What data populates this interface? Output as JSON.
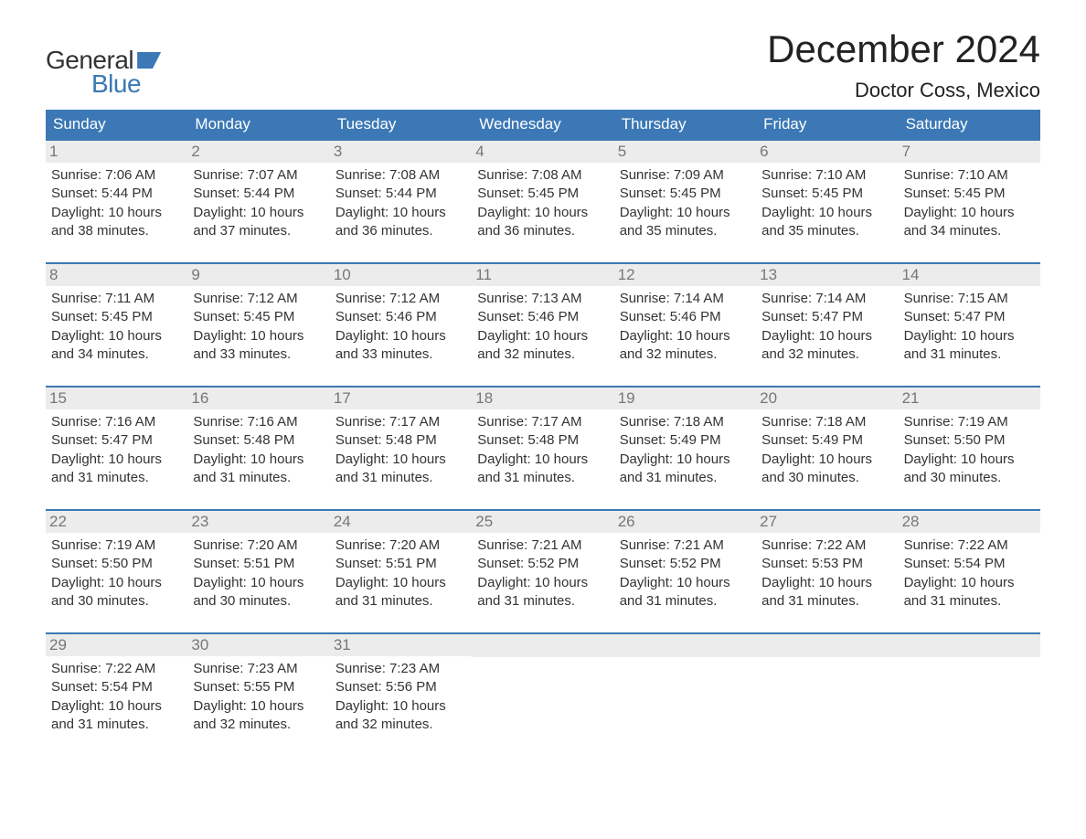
{
  "brand": {
    "line1": "General",
    "line2": "Blue",
    "brand_color": "#3b78b5",
    "text_color": "#333333"
  },
  "header": {
    "month_title": "December 2024",
    "location": "Doctor Coss, Mexico"
  },
  "calendar": {
    "day_names": [
      "Sunday",
      "Monday",
      "Tuesday",
      "Wednesday",
      "Thursday",
      "Friday",
      "Saturday"
    ],
    "header_bg": "#3b78b5",
    "header_fg": "#ffffff",
    "daynum_bg": "#ececec",
    "daynum_fg": "#777777",
    "row_border_color": "#3b78b5",
    "text_color": "#333333",
    "font_size_header": 17,
    "font_size_body": 15,
    "weeks": [
      [
        {
          "day": "1",
          "sunrise": "Sunrise: 7:06 AM",
          "sunset": "Sunset: 5:44 PM",
          "daylight1": "Daylight: 10 hours",
          "daylight2": "and 38 minutes."
        },
        {
          "day": "2",
          "sunrise": "Sunrise: 7:07 AM",
          "sunset": "Sunset: 5:44 PM",
          "daylight1": "Daylight: 10 hours",
          "daylight2": "and 37 minutes."
        },
        {
          "day": "3",
          "sunrise": "Sunrise: 7:08 AM",
          "sunset": "Sunset: 5:44 PM",
          "daylight1": "Daylight: 10 hours",
          "daylight2": "and 36 minutes."
        },
        {
          "day": "4",
          "sunrise": "Sunrise: 7:08 AM",
          "sunset": "Sunset: 5:45 PM",
          "daylight1": "Daylight: 10 hours",
          "daylight2": "and 36 minutes."
        },
        {
          "day": "5",
          "sunrise": "Sunrise: 7:09 AM",
          "sunset": "Sunset: 5:45 PM",
          "daylight1": "Daylight: 10 hours",
          "daylight2": "and 35 minutes."
        },
        {
          "day": "6",
          "sunrise": "Sunrise: 7:10 AM",
          "sunset": "Sunset: 5:45 PM",
          "daylight1": "Daylight: 10 hours",
          "daylight2": "and 35 minutes."
        },
        {
          "day": "7",
          "sunrise": "Sunrise: 7:10 AM",
          "sunset": "Sunset: 5:45 PM",
          "daylight1": "Daylight: 10 hours",
          "daylight2": "and 34 minutes."
        }
      ],
      [
        {
          "day": "8",
          "sunrise": "Sunrise: 7:11 AM",
          "sunset": "Sunset: 5:45 PM",
          "daylight1": "Daylight: 10 hours",
          "daylight2": "and 34 minutes."
        },
        {
          "day": "9",
          "sunrise": "Sunrise: 7:12 AM",
          "sunset": "Sunset: 5:45 PM",
          "daylight1": "Daylight: 10 hours",
          "daylight2": "and 33 minutes."
        },
        {
          "day": "10",
          "sunrise": "Sunrise: 7:12 AM",
          "sunset": "Sunset: 5:46 PM",
          "daylight1": "Daylight: 10 hours",
          "daylight2": "and 33 minutes."
        },
        {
          "day": "11",
          "sunrise": "Sunrise: 7:13 AM",
          "sunset": "Sunset: 5:46 PM",
          "daylight1": "Daylight: 10 hours",
          "daylight2": "and 32 minutes."
        },
        {
          "day": "12",
          "sunrise": "Sunrise: 7:14 AM",
          "sunset": "Sunset: 5:46 PM",
          "daylight1": "Daylight: 10 hours",
          "daylight2": "and 32 minutes."
        },
        {
          "day": "13",
          "sunrise": "Sunrise: 7:14 AM",
          "sunset": "Sunset: 5:47 PM",
          "daylight1": "Daylight: 10 hours",
          "daylight2": "and 32 minutes."
        },
        {
          "day": "14",
          "sunrise": "Sunrise: 7:15 AM",
          "sunset": "Sunset: 5:47 PM",
          "daylight1": "Daylight: 10 hours",
          "daylight2": "and 31 minutes."
        }
      ],
      [
        {
          "day": "15",
          "sunrise": "Sunrise: 7:16 AM",
          "sunset": "Sunset: 5:47 PM",
          "daylight1": "Daylight: 10 hours",
          "daylight2": "and 31 minutes."
        },
        {
          "day": "16",
          "sunrise": "Sunrise: 7:16 AM",
          "sunset": "Sunset: 5:48 PM",
          "daylight1": "Daylight: 10 hours",
          "daylight2": "and 31 minutes."
        },
        {
          "day": "17",
          "sunrise": "Sunrise: 7:17 AM",
          "sunset": "Sunset: 5:48 PM",
          "daylight1": "Daylight: 10 hours",
          "daylight2": "and 31 minutes."
        },
        {
          "day": "18",
          "sunrise": "Sunrise: 7:17 AM",
          "sunset": "Sunset: 5:48 PM",
          "daylight1": "Daylight: 10 hours",
          "daylight2": "and 31 minutes."
        },
        {
          "day": "19",
          "sunrise": "Sunrise: 7:18 AM",
          "sunset": "Sunset: 5:49 PM",
          "daylight1": "Daylight: 10 hours",
          "daylight2": "and 31 minutes."
        },
        {
          "day": "20",
          "sunrise": "Sunrise: 7:18 AM",
          "sunset": "Sunset: 5:49 PM",
          "daylight1": "Daylight: 10 hours",
          "daylight2": "and 30 minutes."
        },
        {
          "day": "21",
          "sunrise": "Sunrise: 7:19 AM",
          "sunset": "Sunset: 5:50 PM",
          "daylight1": "Daylight: 10 hours",
          "daylight2": "and 30 minutes."
        }
      ],
      [
        {
          "day": "22",
          "sunrise": "Sunrise: 7:19 AM",
          "sunset": "Sunset: 5:50 PM",
          "daylight1": "Daylight: 10 hours",
          "daylight2": "and 30 minutes."
        },
        {
          "day": "23",
          "sunrise": "Sunrise: 7:20 AM",
          "sunset": "Sunset: 5:51 PM",
          "daylight1": "Daylight: 10 hours",
          "daylight2": "and 30 minutes."
        },
        {
          "day": "24",
          "sunrise": "Sunrise: 7:20 AM",
          "sunset": "Sunset: 5:51 PM",
          "daylight1": "Daylight: 10 hours",
          "daylight2": "and 31 minutes."
        },
        {
          "day": "25",
          "sunrise": "Sunrise: 7:21 AM",
          "sunset": "Sunset: 5:52 PM",
          "daylight1": "Daylight: 10 hours",
          "daylight2": "and 31 minutes."
        },
        {
          "day": "26",
          "sunrise": "Sunrise: 7:21 AM",
          "sunset": "Sunset: 5:52 PM",
          "daylight1": "Daylight: 10 hours",
          "daylight2": "and 31 minutes."
        },
        {
          "day": "27",
          "sunrise": "Sunrise: 7:22 AM",
          "sunset": "Sunset: 5:53 PM",
          "daylight1": "Daylight: 10 hours",
          "daylight2": "and 31 minutes."
        },
        {
          "day": "28",
          "sunrise": "Sunrise: 7:22 AM",
          "sunset": "Sunset: 5:54 PM",
          "daylight1": "Daylight: 10 hours",
          "daylight2": "and 31 minutes."
        }
      ],
      [
        {
          "day": "29",
          "sunrise": "Sunrise: 7:22 AM",
          "sunset": "Sunset: 5:54 PM",
          "daylight1": "Daylight: 10 hours",
          "daylight2": "and 31 minutes."
        },
        {
          "day": "30",
          "sunrise": "Sunrise: 7:23 AM",
          "sunset": "Sunset: 5:55 PM",
          "daylight1": "Daylight: 10 hours",
          "daylight2": "and 32 minutes."
        },
        {
          "day": "31",
          "sunrise": "Sunrise: 7:23 AM",
          "sunset": "Sunset: 5:56 PM",
          "daylight1": "Daylight: 10 hours",
          "daylight2": "and 32 minutes."
        },
        null,
        null,
        null,
        null
      ]
    ]
  }
}
